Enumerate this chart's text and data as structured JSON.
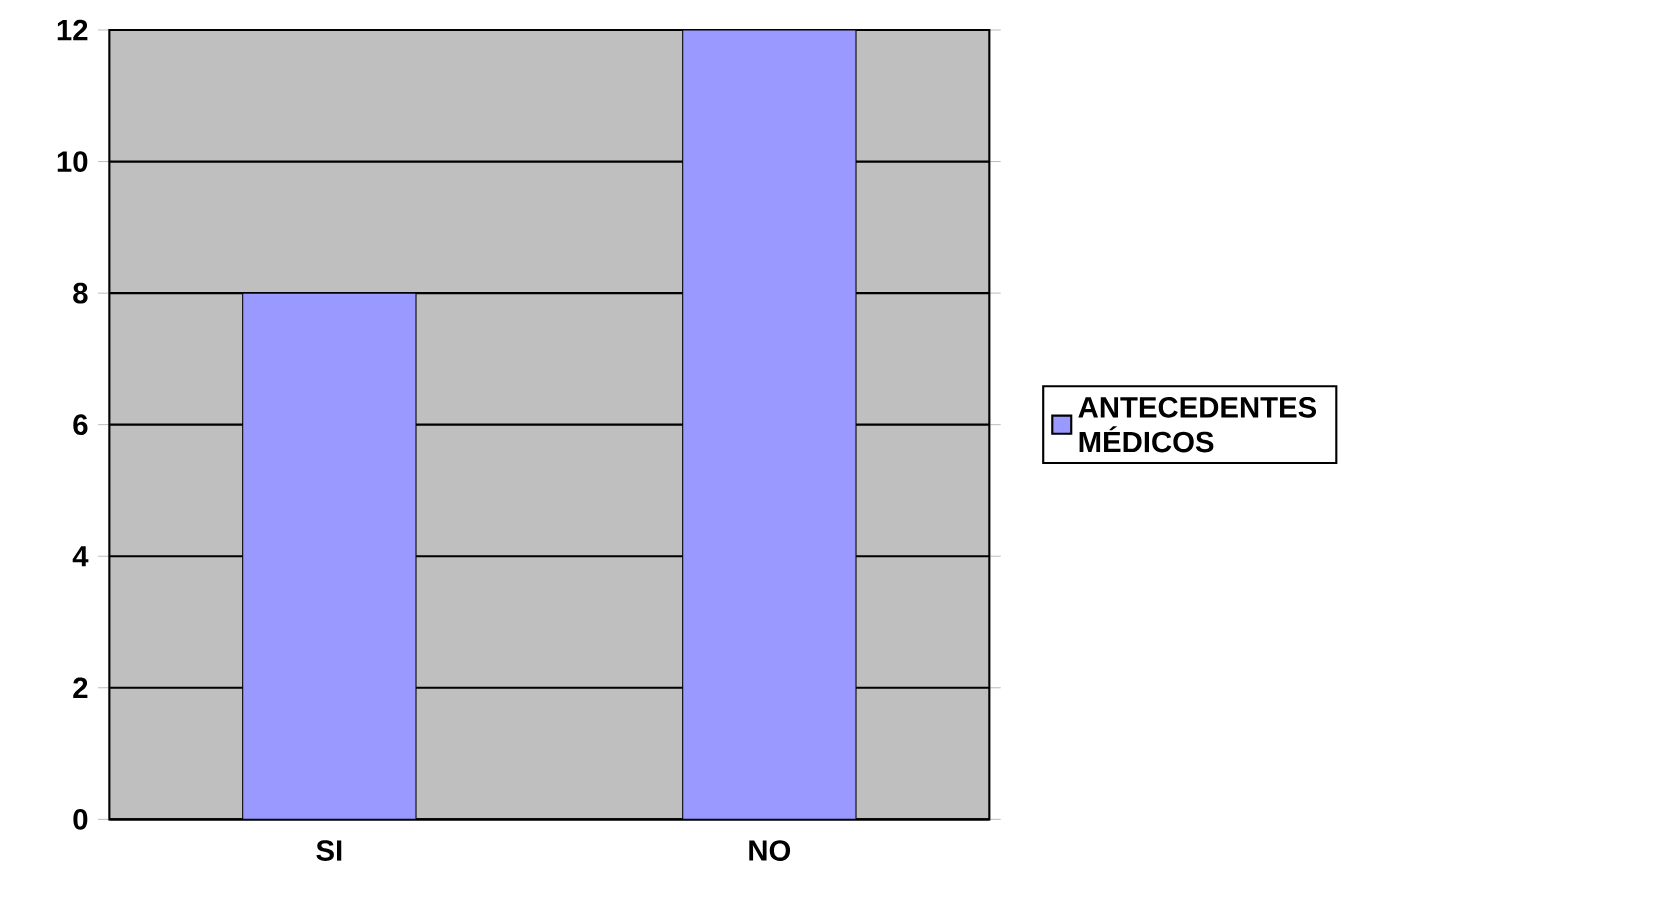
{
  "chart_data": {
    "type": "bar",
    "categories": [
      "SI",
      "NO"
    ],
    "series": [
      {
        "name": "ANTECEDENTES MÉDICOS",
        "color": "#9999ff",
        "values": [
          8,
          12
        ]
      }
    ],
    "ylim": [
      0,
      12
    ],
    "yticks": [
      0,
      2,
      4,
      6,
      8,
      10,
      12
    ],
    "grid": "y",
    "legend": "right"
  }
}
